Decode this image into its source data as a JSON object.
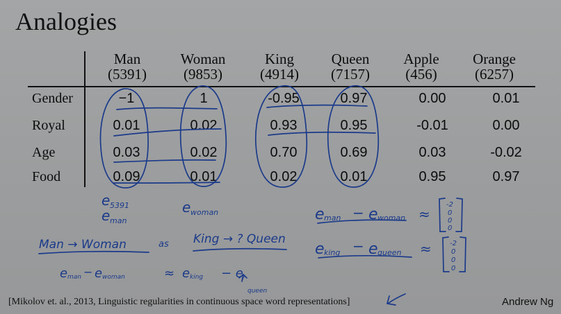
{
  "slide": {
    "title": "Analogies",
    "columns": [
      {
        "word": "Man",
        "index": "(5391)"
      },
      {
        "word": "Woman",
        "index": "(9853)"
      },
      {
        "word": "King",
        "index": "(4914)"
      },
      {
        "word": "Queen",
        "index": "(7157)"
      },
      {
        "word": "Apple",
        "index": "(456)"
      },
      {
        "word": "Orange",
        "index": "(6257)"
      }
    ],
    "rows": [
      {
        "label": "Gender",
        "values": [
          "−1",
          "1",
          "-0.95",
          "0.97",
          "0.00",
          "0.01"
        ]
      },
      {
        "label": "Royal",
        "values": [
          "0.01",
          "0.02",
          "0.93",
          "0.95",
          "-0.01",
          "0.00"
        ]
      },
      {
        "label": "Age",
        "values": [
          "0.03",
          "0.02",
          "0.70",
          "0.69",
          "0.03",
          "-0.02"
        ]
      },
      {
        "label": "Food",
        "values": [
          "0.09",
          "0.01",
          "0.02",
          "0.01",
          "0.95",
          "0.97"
        ]
      }
    ],
    "handwriting": {
      "e5391": "e",
      "e5391_sub": "5391",
      "eman": "e",
      "eman_sub": "man",
      "ewoman": "e",
      "ewoman_sub": "woman",
      "analogy_left": "Man → Woman",
      "analogy_as": "as",
      "analogy_right": "King → ? Queen",
      "diff1_lhs": "e",
      "diff1_lhs_sub": "man",
      "diff1_minus": "−",
      "diff1_rhs": "e",
      "diff1_rhs_sub": "woman",
      "approx": "≈",
      "diff2_lhs": "e",
      "diff2_lhs_sub": "king",
      "diff2_rhs": "e",
      "diff2_rhs_sub": "queen",
      "bottom_lhs": "e",
      "bottom_lhs_sub": "man",
      "bottom_minus": "−",
      "bottom_woman": "e",
      "bottom_woman_sub": "woman",
      "bottom_rhs": "e",
      "bottom_rhs_sub": "king",
      "bottom_q": "− e",
      "bottom_q_sub": "?",
      "queen_note": "queen",
      "vector1": [
        "-2",
        "0",
        "0",
        "0"
      ],
      "vector2": [
        "-2",
        "0",
        "0",
        "0"
      ]
    },
    "citation": "[Mikolov et. al., 2013, Linguistic regularities in continuous space word representations]",
    "author": "Andrew Ng"
  }
}
